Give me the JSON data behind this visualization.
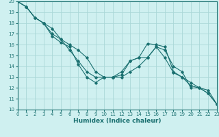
{
  "title": "",
  "xlabel": "Humidex (Indice chaleur)",
  "xlim": [
    0,
    23
  ],
  "ylim": [
    10,
    20
  ],
  "background_color": "#cff0f0",
  "grid_color": "#aad8d8",
  "line_color": "#1a7070",
  "series": [
    {
      "x": [
        0,
        1,
        2,
        3,
        4,
        5,
        6,
        7,
        8,
        9,
        10,
        11,
        12,
        13,
        14,
        15,
        16,
        17,
        18,
        19,
        20,
        21,
        22,
        23
      ],
      "y": [
        20,
        19.5,
        18.5,
        18.0,
        16.8,
        16.2,
        15.8,
        14.2,
        13.0,
        12.5,
        13.0,
        13.0,
        13.2,
        14.5,
        14.8,
        16.1,
        16.0,
        15.8,
        13.5,
        13.0,
        12.2,
        12.0,
        11.5,
        10.5
      ]
    },
    {
      "x": [
        0,
        1,
        2,
        3,
        4,
        5,
        6,
        7,
        8,
        9,
        10,
        11,
        12,
        13,
        14,
        15,
        16,
        17,
        18,
        19,
        20,
        21,
        22,
        23
      ],
      "y": [
        20,
        19.5,
        18.5,
        18.0,
        17.5,
        16.5,
        15.5,
        14.5,
        13.5,
        13.0,
        13.0,
        13.0,
        13.5,
        14.5,
        14.8,
        14.8,
        15.8,
        14.8,
        13.4,
        13.0,
        12.5,
        12.0,
        11.5,
        10.5
      ]
    },
    {
      "x": [
        0,
        1,
        2,
        3,
        4,
        5,
        6,
        7,
        8,
        9,
        10,
        11,
        12,
        13,
        14,
        15,
        16,
        17,
        18,
        19,
        20,
        21,
        22,
        23
      ],
      "y": [
        20,
        19.5,
        18.5,
        18.0,
        17.0,
        16.5,
        16.0,
        15.5,
        14.8,
        13.5,
        13.0,
        13.0,
        13.0,
        13.5,
        14.0,
        14.8,
        15.8,
        15.5,
        14.0,
        13.5,
        12.0,
        12.0,
        11.8,
        10.5
      ]
    }
  ],
  "xticks": [
    0,
    1,
    2,
    3,
    4,
    5,
    6,
    7,
    8,
    9,
    10,
    11,
    12,
    13,
    14,
    15,
    16,
    17,
    18,
    19,
    20,
    21,
    22,
    23
  ],
  "yticks": [
    10,
    11,
    12,
    13,
    14,
    15,
    16,
    17,
    18,
    19,
    20
  ],
  "tick_fontsize": 5.0,
  "xlabel_fontsize": 6.5
}
